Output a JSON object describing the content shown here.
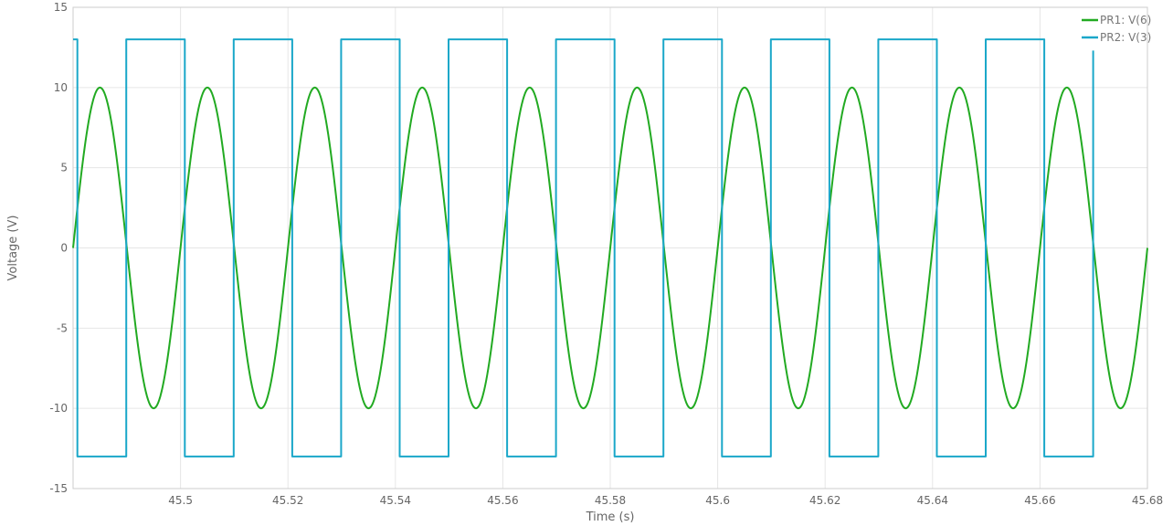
{
  "chart_data": {
    "type": "line",
    "title": "",
    "xlabel": "Time (s)",
    "ylabel": "Voltage (V)",
    "xlim": [
      45.48,
      45.68
    ],
    "ylim": [
      -15,
      15
    ],
    "x_ticks": [
      45.5,
      45.52,
      45.54,
      45.56,
      45.58,
      45.6,
      45.62,
      45.64,
      45.66,
      45.68
    ],
    "x_tick_labels": [
      "45.5",
      "45.52",
      "45.54",
      "45.56",
      "45.58",
      "45.6",
      "45.62",
      "45.64",
      "45.66",
      "45.68"
    ],
    "y_ticks": [
      -15,
      -10,
      -5,
      0,
      5,
      10,
      15
    ],
    "y_tick_labels": [
      "-15",
      "-10",
      "-5",
      "0",
      "5",
      "10",
      "15"
    ],
    "grid": true,
    "legend_position": "top-right",
    "series": [
      {
        "name": "PR1: V(6)",
        "color": "#22aa22",
        "shape": "sine",
        "x": [
          45.48,
          45.485,
          45.49,
          45.495,
          45.5,
          45.505,
          45.51,
          45.515,
          45.52,
          45.525,
          45.53,
          45.535,
          45.54,
          45.545,
          45.55,
          45.555,
          45.56,
          45.565,
          45.57,
          45.575,
          45.58,
          45.585,
          45.59,
          45.595,
          45.6,
          45.605,
          45.61,
          45.615,
          45.62,
          45.625,
          45.63,
          45.635,
          45.64,
          45.645,
          45.65,
          45.655,
          45.66,
          45.665,
          45.67,
          45.675,
          45.68
        ],
        "y": [
          0,
          10,
          0,
          -10,
          0,
          10,
          0,
          -10,
          0,
          10,
          0,
          -10,
          0,
          10,
          0,
          -10,
          0,
          10,
          0,
          -10,
          0,
          10,
          0,
          -10,
          0,
          10,
          0,
          -10,
          0,
          10,
          0,
          -10,
          0,
          10,
          0,
          -10,
          0,
          10,
          0,
          -10,
          0
        ]
      },
      {
        "name": "PR2: V(3)",
        "color": "#1aa7c9",
        "shape": "step",
        "x": [
          45.48,
          45.4808,
          45.4808,
          45.4899,
          45.4899,
          45.5008,
          45.5008,
          45.5099,
          45.5099,
          45.5208,
          45.5208,
          45.5299,
          45.5299,
          45.5408,
          45.5408,
          45.5499,
          45.5499,
          45.5608,
          45.5608,
          45.5699,
          45.5699,
          45.5808,
          45.5808,
          45.5899,
          45.5899,
          45.6008,
          45.6008,
          45.6099,
          45.6099,
          45.6208,
          45.6208,
          45.6299,
          45.6299,
          45.6408,
          45.6408,
          45.6499,
          45.6499,
          45.6608,
          45.6608,
          45.6699,
          45.6699
        ],
        "y": [
          13,
          13,
          -13,
          -13,
          13,
          13,
          -13,
          -13,
          13,
          13,
          -13,
          -13,
          13,
          13,
          -13,
          -13,
          13,
          13,
          -13,
          -13,
          13,
          13,
          -13,
          -13,
          13,
          13,
          -13,
          -13,
          13,
          13,
          -13,
          -13,
          13,
          13,
          -13,
          -13,
          13,
          13,
          -13,
          -13,
          12.3
        ]
      }
    ]
  }
}
